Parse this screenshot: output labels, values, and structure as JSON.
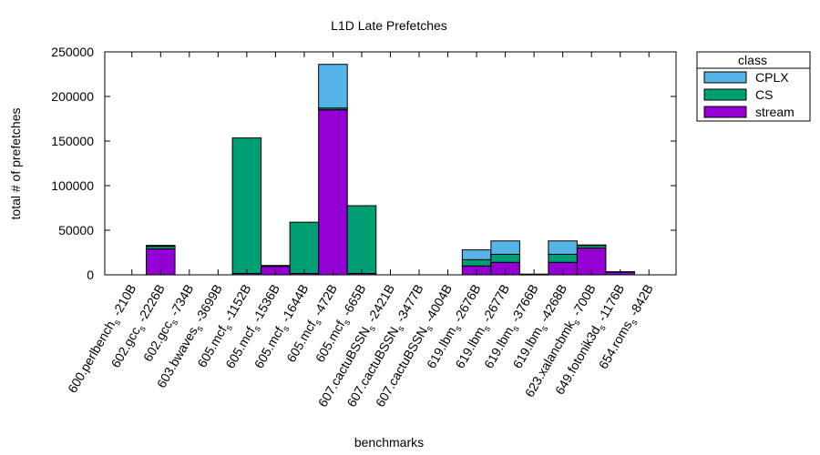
{
  "chart_data": {
    "type": "bar",
    "stacked": true,
    "title": "L1D Late Prefetches",
    "xlabel": "benchmarks",
    "ylabel": "total # of prefetches",
    "ylim": [
      0,
      250000
    ],
    "yticks": [
      "0",
      "50000",
      "100000",
      "150000",
      "200000",
      "250000"
    ],
    "grid": false,
    "legend": {
      "title": "class",
      "placement": "outside-top-right"
    },
    "categories": [
      {
        "base": "600.perlbench",
        "sub": "s",
        "tail": "-210B"
      },
      {
        "base": "602.gcc",
        "sub": "s",
        "tail": "-2226B"
      },
      {
        "base": "602.gcc",
        "sub": "s",
        "tail": "-734B"
      },
      {
        "base": "603.bwaves",
        "sub": "s",
        "tail": "-3699B"
      },
      {
        "base": "605.mcf",
        "sub": "s",
        "tail": "-1152B"
      },
      {
        "base": "605.mcf",
        "sub": "s",
        "tail": "-1536B"
      },
      {
        "base": "605.mcf",
        "sub": "s",
        "tail": "-1644B"
      },
      {
        "base": "605.mcf",
        "sub": "s",
        "tail": "-472B"
      },
      {
        "base": "605.mcf",
        "sub": "s",
        "tail": "-665B"
      },
      {
        "base": "607.cactuBSSN",
        "sub": "s",
        "tail": "-2421B"
      },
      {
        "base": "607.cactuBSSN",
        "sub": "s",
        "tail": "-3477B"
      },
      {
        "base": "607.cactuBSSN",
        "sub": "s",
        "tail": "-4004B"
      },
      {
        "base": "619.lbm",
        "sub": "s",
        "tail": "-2676B"
      },
      {
        "base": "619.lbm",
        "sub": "s",
        "tail": "-2677B"
      },
      {
        "base": "619.lbm",
        "sub": "s",
        "tail": "-3766B"
      },
      {
        "base": "619.lbm",
        "sub": "s",
        "tail": "-4268B"
      },
      {
        "base": "623.xalancbmk",
        "sub": "s",
        "tail": "-700B"
      },
      {
        "base": "649.fotonik3d",
        "sub": "s",
        "tail": "-1176B"
      },
      {
        "base": "654.roms",
        "sub": "s",
        "tail": "-842B"
      }
    ],
    "series": [
      {
        "name": "stream",
        "color": "#9400d3",
        "values": [
          0,
          29000,
          0,
          0,
          1500,
          9500,
          1500,
          185000,
          1500,
          0,
          0,
          0,
          10000,
          14000,
          500,
          14000,
          30000,
          3000,
          0
        ]
      },
      {
        "name": "CS",
        "color": "#009e73",
        "values": [
          0,
          3000,
          0,
          0,
          152000,
          1000,
          57500,
          2000,
          76000,
          0,
          0,
          0,
          7000,
          9000,
          300,
          9000,
          3000,
          500,
          0
        ]
      },
      {
        "name": "CPLX",
        "color": "#56b4e9",
        "values": [
          0,
          1000,
          0,
          0,
          0,
          0,
          0,
          49000,
          0,
          0,
          0,
          0,
          11000,
          15000,
          0,
          15000,
          500,
          0,
          0
        ]
      }
    ]
  }
}
